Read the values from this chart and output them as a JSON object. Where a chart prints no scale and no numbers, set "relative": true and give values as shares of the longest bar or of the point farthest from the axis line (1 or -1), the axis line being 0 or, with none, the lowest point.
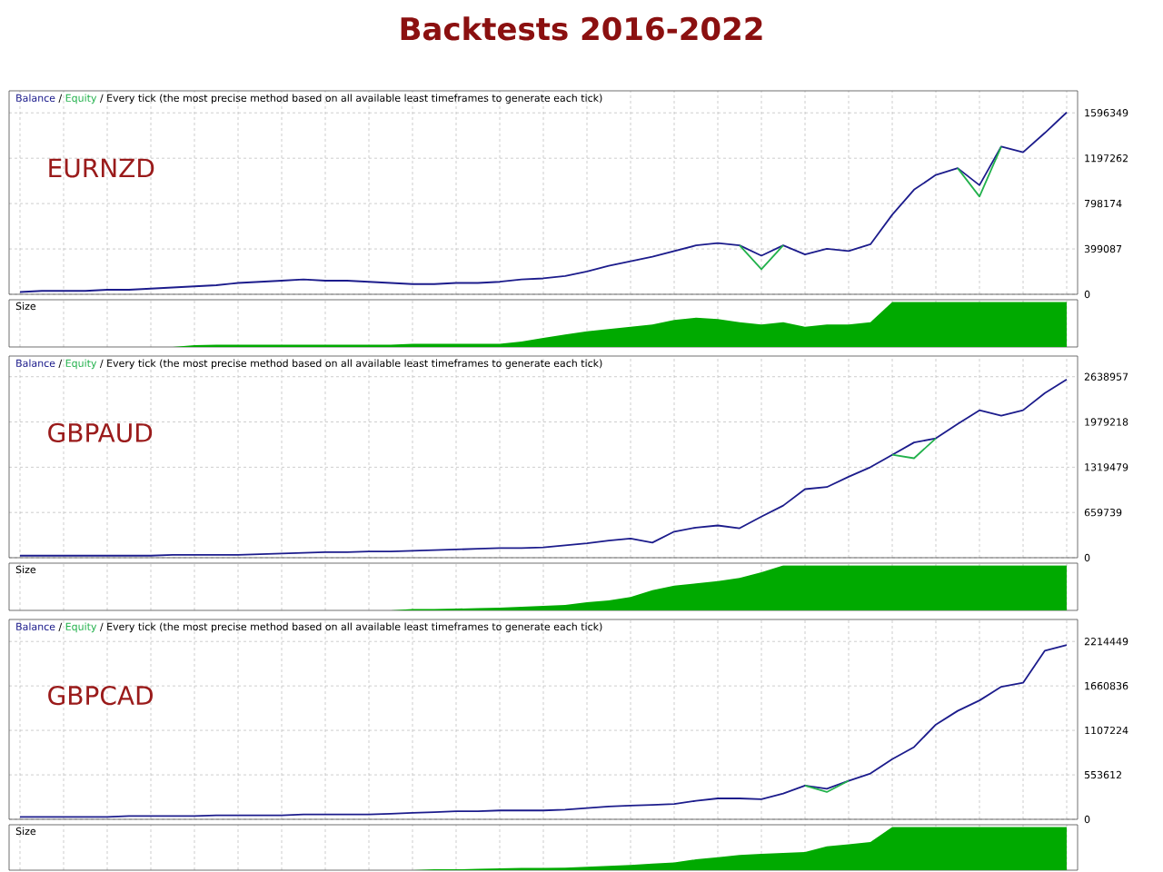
{
  "chart_data": [
    {
      "type": "line",
      "title": "Backtests 2016-2022",
      "subtitle": "/ Every tick (the most precise method based on all available least timeframes to generate each tick)",
      "annotations": [
        "EURNZD",
        "/"
      ],
      "categories": [
        null,
        null,
        null,
        null,
        null,
        null,
        null,
        null,
        null,
        null,
        null,
        null,
        null,
        null,
        null,
        null,
        null,
        null,
        null,
        null,
        null,
        null,
        null,
        null,
        null,
        null,
        null,
        null,
        null,
        null,
        null,
        null,
        null,
        null,
        null,
        null,
        null,
        null,
        null,
        null,
        null,
        null,
        null,
        null,
        null,
        null,
        null,
        null,
        null
      ],
      "series": [
        {
          "name": "Balance",
          "color": "#1c1c8c",
          "values": [
            20000,
            30000,
            30000,
            30000,
            40000,
            40000,
            50000,
            60000,
            70000,
            80000,
            100000,
            110000,
            120000,
            130000,
            120000,
            120000,
            110000,
            100000,
            90000,
            90000,
            100000,
            100000,
            110000,
            130000,
            140000,
            160000,
            200000,
            250000,
            290000,
            330000,
            380000,
            430000,
            450000,
            430000,
            340000,
            430000,
            350000,
            400000,
            380000,
            440000,
            700000,
            920000,
            1050000,
            1110000,
            960000,
            1300000,
            1250000,
            1420000,
            1600000
          ]
        },
        {
          "name": "Equity",
          "color": "#22b14c",
          "values": [
            null,
            null,
            null,
            null,
            null,
            null,
            null,
            null,
            null,
            null,
            null,
            null,
            null,
            null,
            null,
            null,
            null,
            null,
            null,
            null,
            null,
            null,
            null,
            null,
            null,
            null,
            null,
            null,
            null,
            null,
            null,
            null,
            null,
            430000,
            220000,
            430000,
            null,
            null,
            null,
            null,
            null,
            null,
            null,
            1110000,
            860000,
            1300000,
            null,
            null,
            null
          ]
        }
      ],
      "ylim": [
        0,
        1790000
      ],
      "yticks": [
        0,
        399087,
        798174,
        1197262,
        1596349
      ],
      "grid": true,
      "legend": "top left",
      "tick_labels": "y"
    },
    {
      "type": "area",
      "subtitle": "Size",
      "relative": true,
      "color": "#00aa00",
      "categories": [
        null,
        null,
        null,
        null,
        null,
        null,
        null,
        null,
        null,
        null,
        null,
        null,
        null,
        null,
        null,
        null,
        null,
        null,
        null,
        null,
        null,
        null,
        null,
        null,
        null,
        null,
        null,
        null,
        null,
        null,
        null,
        null,
        null,
        null,
        null,
        null,
        null,
        null,
        null,
        null,
        null,
        null,
        null,
        null,
        null,
        null,
        null,
        null,
        null
      ],
      "values": [
        0,
        0,
        0,
        0,
        0,
        0,
        0,
        0,
        0.04,
        0.05,
        0.05,
        0.05,
        0.05,
        0.05,
        0.05,
        0.05,
        0.05,
        0.05,
        0.07,
        0.07,
        0.07,
        0.07,
        0.07,
        0.12,
        0.2,
        0.28,
        0.35,
        0.4,
        0.45,
        0.5,
        0.6,
        0.65,
        0.62,
        0.55,
        0.5,
        0.55,
        0.45,
        0.5,
        0.5,
        0.55,
        1,
        1,
        1,
        1,
        1,
        1,
        1,
        1,
        1
      ],
      "grid": true,
      "tick_labels": false
    },
    {
      "type": "line",
      "subtitle": "/ Every tick (the most precise method based on all available least timeframes to generate each tick)",
      "annotations": [
        "GBPAUD",
        "/"
      ],
      "categories": [
        null,
        null,
        null,
        null,
        null,
        null,
        null,
        null,
        null,
        null,
        null,
        null,
        null,
        null,
        null,
        null,
        null,
        null,
        null,
        null,
        null,
        null,
        null,
        null,
        null,
        null,
        null,
        null,
        null,
        null,
        null,
        null,
        null,
        null,
        null,
        null,
        null,
        null,
        null,
        null,
        null,
        null,
        null,
        null,
        null,
        null,
        null,
        null,
        null
      ],
      "series": [
        {
          "name": "Balance",
          "color": "#1c1c8c",
          "values": [
            30000,
            30000,
            30000,
            30000,
            30000,
            30000,
            30000,
            40000,
            40000,
            40000,
            40000,
            50000,
            60000,
            70000,
            80000,
            80000,
            90000,
            90000,
            100000,
            110000,
            120000,
            130000,
            140000,
            140000,
            150000,
            180000,
            210000,
            250000,
            280000,
            220000,
            380000,
            440000,
            470000,
            430000,
            600000,
            760000,
            1000000,
            1030000,
            1180000,
            1320000,
            1500000,
            1680000,
            1740000,
            1950000,
            2150000,
            2070000,
            2150000,
            2400000,
            2600000
          ]
        },
        {
          "name": "Equity",
          "color": "#22b14c",
          "values": [
            null,
            null,
            null,
            null,
            null,
            null,
            null,
            null,
            null,
            null,
            null,
            null,
            null,
            null,
            null,
            null,
            null,
            null,
            null,
            null,
            null,
            null,
            null,
            null,
            null,
            null,
            null,
            null,
            null,
            null,
            null,
            null,
            null,
            null,
            null,
            null,
            null,
            null,
            null,
            null,
            1500000,
            1450000,
            1740000,
            null,
            null,
            null,
            null,
            null,
            null
          ]
        }
      ],
      "ylim": [
        0,
        2940000
      ],
      "yticks": [
        0,
        659739,
        1319479,
        1979218,
        2638957
      ],
      "grid": true,
      "legend": "top left",
      "tick_labels": "y"
    },
    {
      "type": "area",
      "subtitle": "Size",
      "relative": true,
      "color": "#00aa00",
      "categories": [
        null,
        null,
        null,
        null,
        null,
        null,
        null,
        null,
        null,
        null,
        null,
        null,
        null,
        null,
        null,
        null,
        null,
        null,
        null,
        null,
        null,
        null,
        null,
        null,
        null,
        null,
        null,
        null,
        null,
        null,
        null,
        null,
        null,
        null,
        null,
        null,
        null,
        null,
        null,
        null,
        null,
        null,
        null,
        null,
        null,
        null,
        null,
        null,
        null
      ],
      "values": [
        0,
        0,
        0,
        0,
        0,
        0,
        0,
        0,
        0,
        0,
        0,
        0,
        0,
        0,
        0,
        0,
        0,
        0,
        0.03,
        0.03,
        0.04,
        0.05,
        0.06,
        0.08,
        0.1,
        0.12,
        0.18,
        0.22,
        0.3,
        0.45,
        0.55,
        0.6,
        0.65,
        0.72,
        0.85,
        1,
        1,
        1,
        1,
        1,
        1,
        1,
        1,
        1,
        1,
        1,
        1,
        1,
        1
      ],
      "grid": true,
      "tick_labels": false
    },
    {
      "type": "line",
      "subtitle": "/ Every tick (the most precise method based on all available least timeframes to generate each tick)",
      "annotations": [
        "GBPCAD",
        "/"
      ],
      "categories": [
        null,
        null,
        null,
        null,
        null,
        null,
        null,
        null,
        null,
        null,
        null,
        null,
        null,
        null,
        null,
        null,
        null,
        null,
        null,
        null,
        null,
        null,
        null,
        null,
        null,
        null,
        null,
        null,
        null,
        null,
        null,
        null,
        null,
        null,
        null,
        null,
        null,
        null,
        null,
        null,
        null,
        null,
        null,
        null,
        null,
        null,
        null,
        null,
        null
      ],
      "series": [
        {
          "name": "Balance",
          "color": "#1c1c8c",
          "values": [
            30000,
            30000,
            30000,
            30000,
            30000,
            40000,
            40000,
            40000,
            40000,
            50000,
            50000,
            50000,
            50000,
            60000,
            60000,
            60000,
            60000,
            70000,
            80000,
            90000,
            100000,
            100000,
            110000,
            110000,
            110000,
            120000,
            140000,
            160000,
            170000,
            180000,
            190000,
            230000,
            260000,
            260000,
            250000,
            320000,
            420000,
            380000,
            480000,
            570000,
            750000,
            900000,
            1180000,
            1350000,
            1480000,
            1650000,
            1700000,
            2100000,
            2170000
          ]
        },
        {
          "name": "Equity",
          "color": "#22b14c",
          "values": [
            null,
            null,
            null,
            null,
            null,
            null,
            null,
            null,
            null,
            null,
            null,
            null,
            null,
            null,
            null,
            null,
            null,
            null,
            null,
            null,
            null,
            null,
            null,
            null,
            null,
            null,
            null,
            null,
            null,
            null,
            null,
            null,
            null,
            null,
            null,
            null,
            420000,
            340000,
            480000,
            null,
            null,
            null,
            null,
            null,
            null,
            null,
            null,
            null,
            null
          ]
        }
      ],
      "ylim": [
        0,
        2488000
      ],
      "yticks": [
        0,
        553612,
        1107224,
        1660836,
        2214449
      ],
      "grid": true,
      "legend": "top left",
      "tick_labels": "y"
    },
    {
      "type": "area",
      "subtitle": "Size",
      "relative": true,
      "color": "#00aa00",
      "categories": [
        null,
        null,
        null,
        null,
        null,
        null,
        null,
        null,
        null,
        null,
        null,
        null,
        null,
        null,
        null,
        null,
        null,
        null,
        null,
        null,
        null,
        null,
        null,
        null,
        null,
        null,
        null,
        null,
        null,
        null,
        null,
        null,
        null,
        null,
        null,
        null,
        null,
        null,
        null,
        null,
        null,
        null,
        null,
        null,
        null,
        null,
        null,
        null,
        null
      ],
      "values": [
        0,
        0,
        0,
        0,
        0,
        0,
        0,
        0,
        0,
        0,
        0,
        0,
        0,
        0,
        0,
        0,
        0,
        0,
        0,
        0.02,
        0.02,
        0.03,
        0.04,
        0.05,
        0.05,
        0.06,
        0.08,
        0.1,
        0.12,
        0.15,
        0.18,
        0.25,
        0.3,
        0.35,
        0.38,
        0.4,
        0.42,
        0.55,
        0.6,
        0.65,
        1,
        1,
        1,
        1,
        1,
        1,
        1,
        1,
        1
      ],
      "grid": true,
      "tick_labels": false
    }
  ]
}
